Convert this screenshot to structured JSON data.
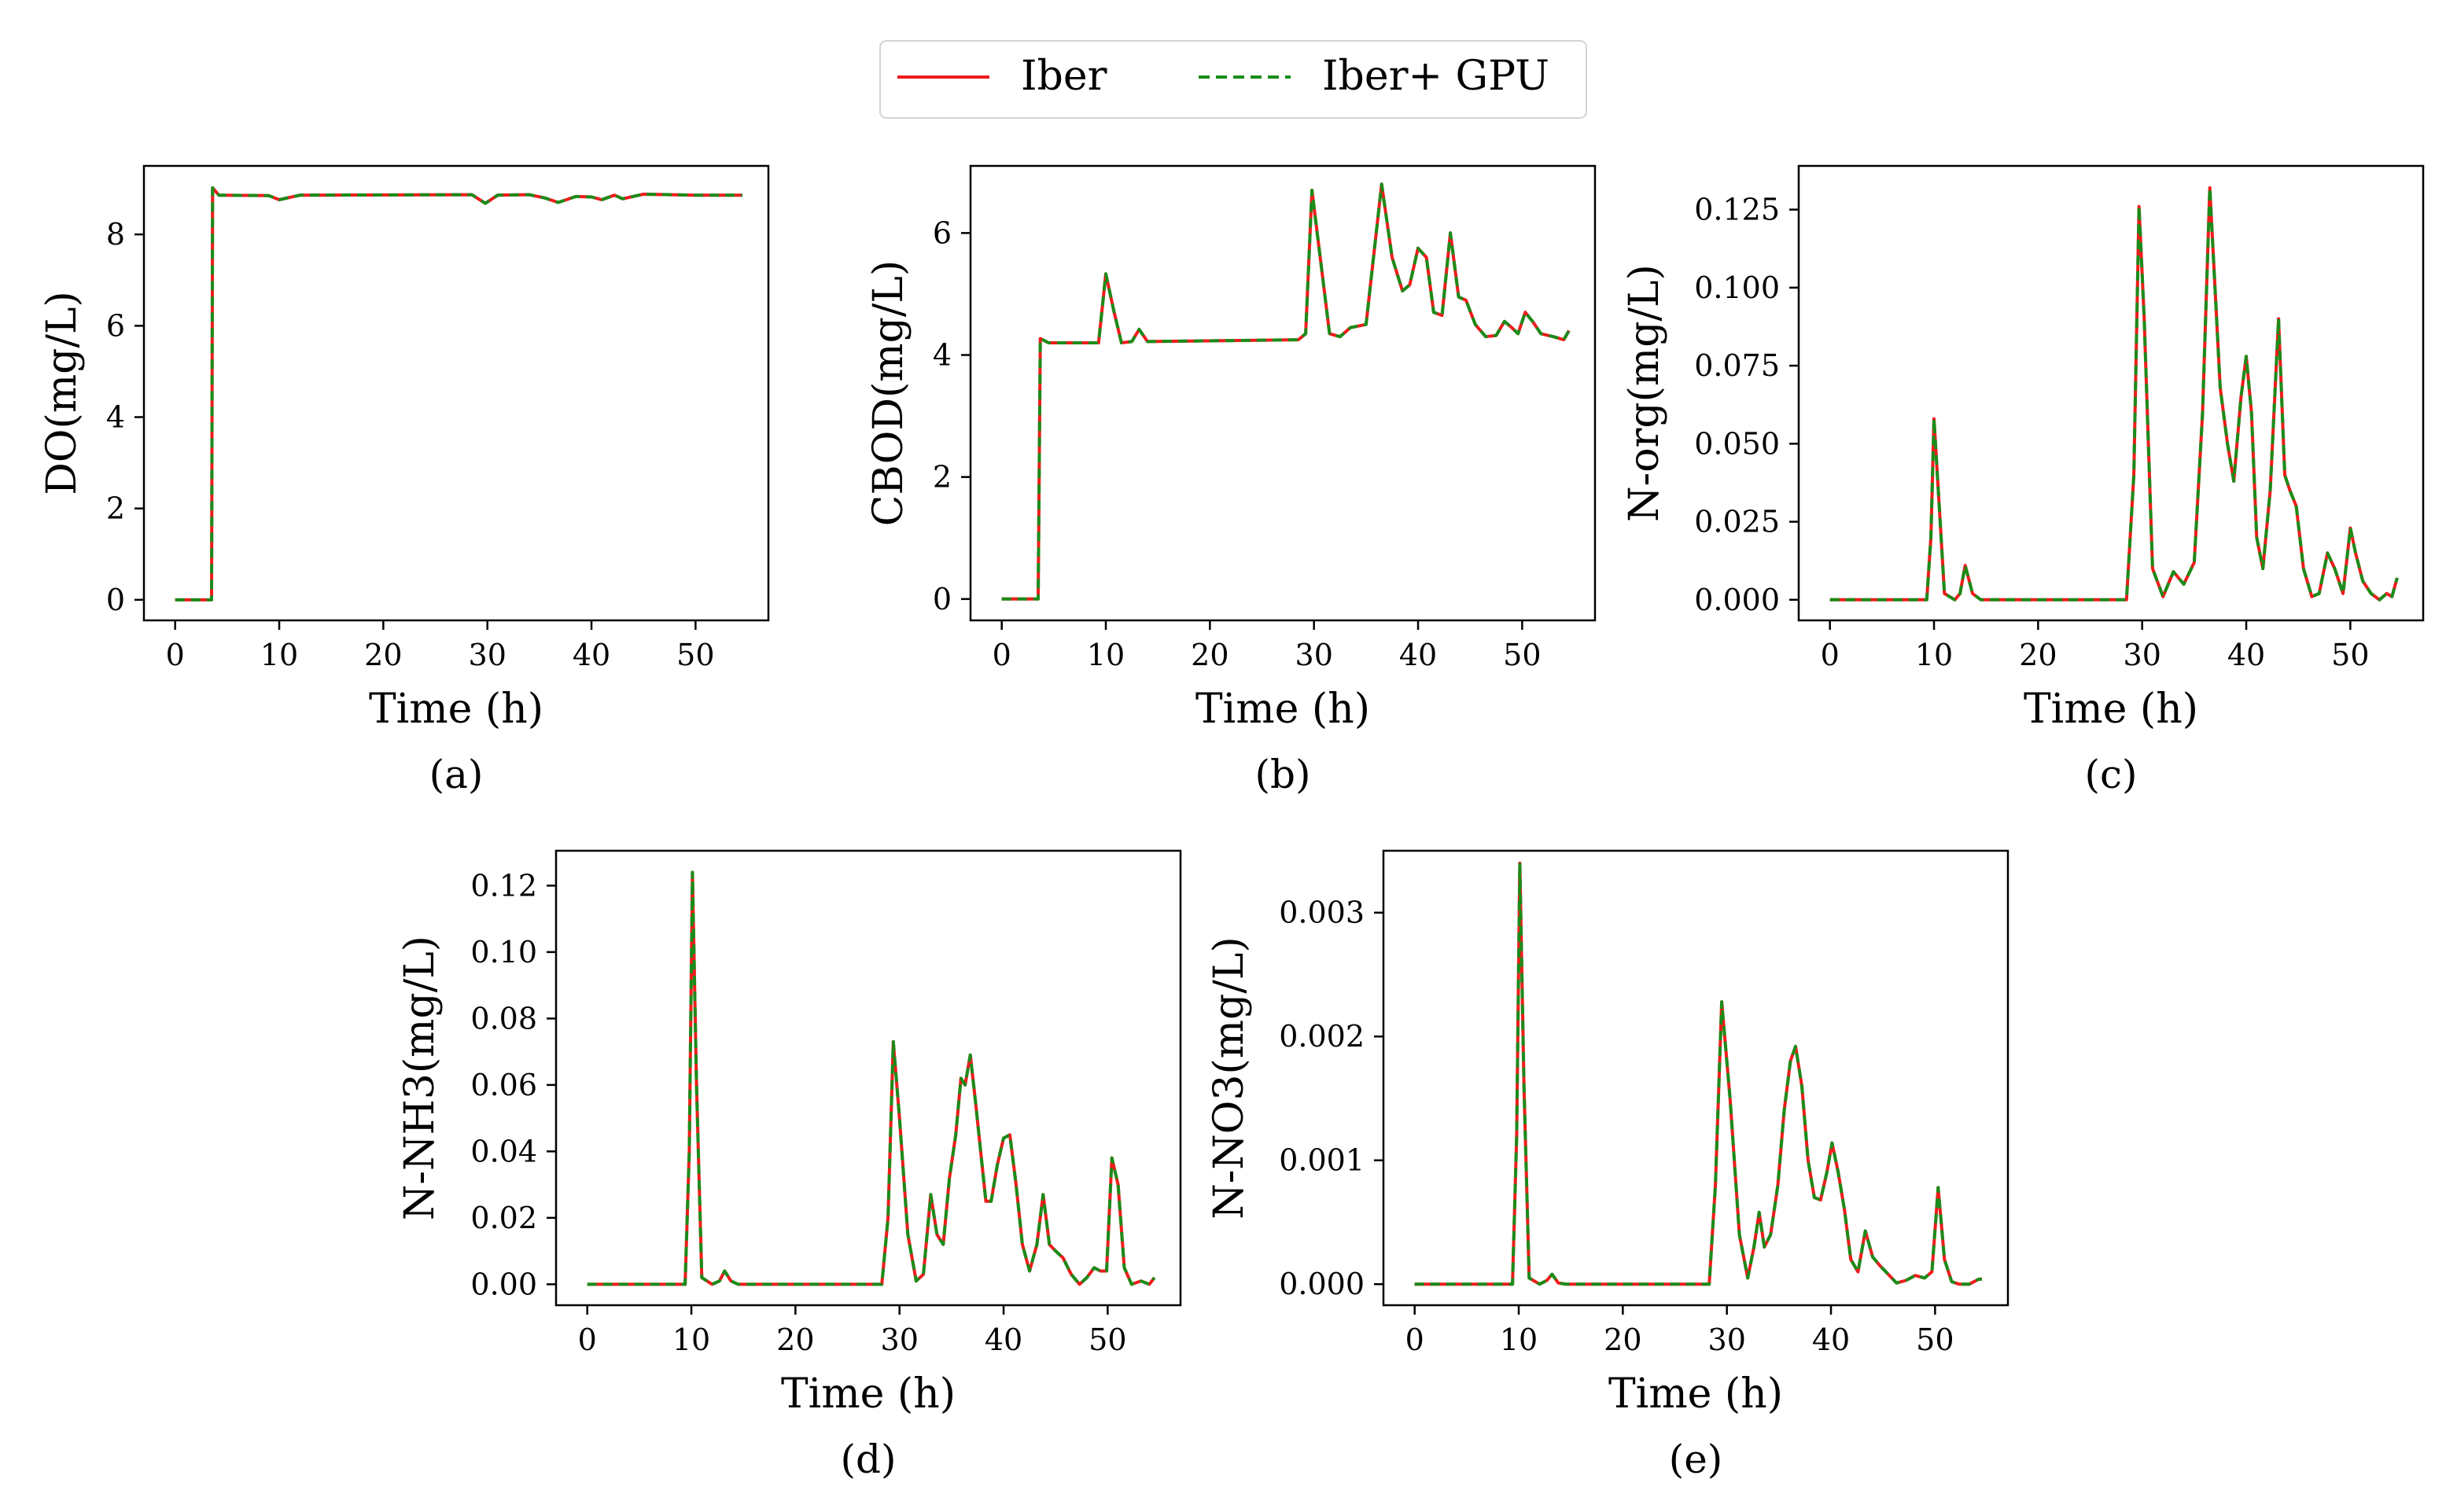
{
  "legend": {
    "entries": [
      {
        "label": "Iber",
        "color": "#ee1c1c",
        "style": "solid"
      },
      {
        "label": "Iber+ GPU",
        "color": "#1a8c1a",
        "style": "dashed"
      }
    ]
  },
  "chart_data": [
    {
      "panel": "(a)",
      "type": "line",
      "xlabel": "Time (h)",
      "ylabel": "DO(mg/L)",
      "xlim": [
        -3,
        57
      ],
      "ylim": [
        -0.45,
        9.5
      ],
      "xticks": [
        0,
        10,
        20,
        30,
        40,
        50
      ],
      "yticks": [
        0,
        2,
        4,
        6,
        8
      ],
      "ytick_labels": [
        "0",
        "2",
        "4",
        "6",
        "8"
      ],
      "series": [
        {
          "name": "Iber",
          "x": [
            0,
            3.5,
            3.6,
            4.2,
            9,
            10,
            12,
            28.5,
            29.8,
            31,
            34,
            35.5,
            36.8,
            38.5,
            40,
            41,
            42.2,
            43,
            45,
            50,
            54.5
          ],
          "y": [
            0,
            0,
            9.02,
            8.86,
            8.85,
            8.76,
            8.86,
            8.87,
            8.68,
            8.86,
            8.87,
            8.8,
            8.7,
            8.83,
            8.82,
            8.76,
            8.86,
            8.78,
            8.88,
            8.86,
            8.86
          ]
        },
        {
          "name": "Iber+ GPU",
          "x": [
            0,
            3.5,
            3.6,
            4.2,
            9,
            10,
            12,
            28.5,
            29.8,
            31,
            34,
            35.5,
            36.8,
            38.5,
            40,
            41,
            42.2,
            43,
            45,
            50,
            54.5
          ],
          "y": [
            0,
            0,
            9.02,
            8.86,
            8.85,
            8.76,
            8.86,
            8.87,
            8.68,
            8.86,
            8.87,
            8.8,
            8.7,
            8.83,
            8.82,
            8.76,
            8.86,
            8.78,
            8.88,
            8.86,
            8.86
          ]
        }
      ]
    },
    {
      "panel": "(b)",
      "type": "line",
      "xlabel": "Time (h)",
      "ylabel": "CBOD(mg/L)",
      "xlim": [
        -3,
        57
      ],
      "ylim": [
        -0.35,
        7.1
      ],
      "xticks": [
        0,
        10,
        20,
        30,
        40,
        50
      ],
      "yticks": [
        0,
        2,
        4,
        6
      ],
      "ytick_labels": [
        "0",
        "2",
        "4",
        "6"
      ],
      "series": [
        {
          "name": "Iber",
          "x": [
            0,
            3.5,
            3.7,
            4.5,
            9.3,
            10,
            10.8,
            11.5,
            12.5,
            13.2,
            14,
            28.5,
            29.2,
            29.8,
            30.6,
            31.5,
            32.5,
            33.5,
            35,
            36.5,
            37.5,
            38.5,
            39.2,
            40,
            40.8,
            41.5,
            42.3,
            43.1,
            43.9,
            44.6,
            45.5,
            46.5,
            47.5,
            48.3,
            49,
            49.6,
            50.3,
            51,
            51.8,
            53,
            54,
            54.5
          ],
          "y": [
            0,
            0,
            4.27,
            4.2,
            4.2,
            5.33,
            4.7,
            4.2,
            4.22,
            4.42,
            4.22,
            4.25,
            4.35,
            6.7,
            5.6,
            4.35,
            4.3,
            4.45,
            4.5,
            6.8,
            5.6,
            5.05,
            5.15,
            5.75,
            5.6,
            4.7,
            4.65,
            6.0,
            4.95,
            4.9,
            4.5,
            4.3,
            4.32,
            4.55,
            4.45,
            4.35,
            4.7,
            4.55,
            4.35,
            4.3,
            4.25,
            4.4
          ]
        },
        {
          "name": "Iber+ GPU",
          "x": [
            0,
            3.5,
            3.7,
            4.5,
            9.3,
            10,
            10.8,
            11.5,
            12.5,
            13.2,
            14,
            28.5,
            29.2,
            29.8,
            30.6,
            31.5,
            32.5,
            33.5,
            35,
            36.5,
            37.5,
            38.5,
            39.2,
            40,
            40.8,
            41.5,
            42.3,
            43.1,
            43.9,
            44.6,
            45.5,
            46.5,
            47.5,
            48.3,
            49,
            49.6,
            50.3,
            51,
            51.8,
            53,
            54,
            54.5
          ],
          "y": [
            0,
            0,
            4.27,
            4.2,
            4.2,
            5.33,
            4.7,
            4.2,
            4.22,
            4.42,
            4.22,
            4.25,
            4.35,
            6.7,
            5.6,
            4.35,
            4.3,
            4.45,
            4.5,
            6.8,
            5.6,
            5.05,
            5.15,
            5.75,
            5.6,
            4.7,
            4.65,
            6.0,
            4.95,
            4.9,
            4.5,
            4.3,
            4.32,
            4.55,
            4.45,
            4.35,
            4.7,
            4.55,
            4.35,
            4.3,
            4.25,
            4.4
          ]
        }
      ]
    },
    {
      "panel": "(c)",
      "type": "line",
      "xlabel": "Time (h)",
      "ylabel": "N-org(mg/L)",
      "xlim": [
        -3,
        57
      ],
      "ylim": [
        -0.0066,
        0.139
      ],
      "xticks": [
        0,
        10,
        20,
        30,
        40,
        50
      ],
      "yticks": [
        0,
        0.025,
        0.05,
        0.075,
        0.1,
        0.125
      ],
      "ytick_labels": [
        "0.000",
        "0.025",
        "0.050",
        "0.075",
        "0.100",
        "0.125"
      ],
      "series": [
        {
          "name": "Iber",
          "x": [
            0,
            9.3,
            9.7,
            10,
            10.5,
            11,
            12,
            12.5,
            13,
            13.7,
            14.5,
            28.5,
            29.2,
            29.7,
            30.2,
            31,
            32,
            33,
            34,
            35,
            35.8,
            36.5,
            37,
            37.5,
            38.2,
            38.8,
            39.5,
            40,
            40.5,
            41,
            41.6,
            42.3,
            43.1,
            43.7,
            44.2,
            44.8,
            45.5,
            46.3,
            47,
            47.8,
            48.5,
            49.3,
            50,
            50.5,
            51.2,
            52,
            52.8,
            53.5,
            54,
            54.5
          ],
          "y": [
            0,
            0,
            0.02,
            0.058,
            0.03,
            0.002,
            0,
            0.002,
            0.011,
            0.002,
            0,
            0,
            0.04,
            0.126,
            0.09,
            0.01,
            0.001,
            0.009,
            0.005,
            0.012,
            0.06,
            0.132,
            0.1,
            0.068,
            0.05,
            0.038,
            0.065,
            0.078,
            0.06,
            0.02,
            0.01,
            0.035,
            0.09,
            0.04,
            0.035,
            0.03,
            0.01,
            0.001,
            0.002,
            0.015,
            0.01,
            0.002,
            0.023,
            0.015,
            0.006,
            0.002,
            0.0,
            0.002,
            0.001,
            0.007
          ]
        },
        {
          "name": "Iber+ GPU",
          "x": [
            0,
            9.3,
            9.7,
            10,
            10.5,
            11,
            12,
            12.5,
            13,
            13.7,
            14.5,
            28.5,
            29.2,
            29.7,
            30.2,
            31,
            32,
            33,
            34,
            35,
            35.8,
            36.5,
            37,
            37.5,
            38.2,
            38.8,
            39.5,
            40,
            40.5,
            41,
            41.6,
            42.3,
            43.1,
            43.7,
            44.2,
            44.8,
            45.5,
            46.3,
            47,
            47.8,
            48.5,
            49.3,
            50,
            50.5,
            51.2,
            52,
            52.8,
            53.5,
            54,
            54.5
          ],
          "y": [
            0,
            0,
            0.02,
            0.058,
            0.03,
            0.002,
            0,
            0.002,
            0.011,
            0.002,
            0,
            0,
            0.04,
            0.126,
            0.09,
            0.01,
            0.001,
            0.009,
            0.005,
            0.012,
            0.06,
            0.132,
            0.1,
            0.068,
            0.05,
            0.038,
            0.065,
            0.078,
            0.06,
            0.02,
            0.01,
            0.035,
            0.09,
            0.04,
            0.035,
            0.03,
            0.01,
            0.001,
            0.002,
            0.015,
            0.01,
            0.002,
            0.023,
            0.015,
            0.006,
            0.002,
            0.0,
            0.002,
            0.001,
            0.007
          ]
        }
      ]
    },
    {
      "panel": "(d)",
      "type": "line",
      "xlabel": "Time (h)",
      "ylabel": "N-NH3(mg/L)",
      "xlim": [
        -3,
        57
      ],
      "ylim": [
        -0.0063,
        0.1305
      ],
      "xticks": [
        0,
        10,
        20,
        30,
        40,
        50
      ],
      "yticks": [
        0,
        0.02,
        0.04,
        0.06,
        0.08,
        0.1,
        0.12
      ],
      "ytick_labels": [
        "0.00",
        "0.02",
        "0.04",
        "0.06",
        "0.08",
        "0.10",
        "0.12"
      ],
      "series": [
        {
          "name": "Iber",
          "x": [
            0,
            9.4,
            9.8,
            10.1,
            10.5,
            11,
            12,
            12.7,
            13.2,
            13.8,
            14.5,
            28.3,
            28.9,
            29.4,
            30,
            30.8,
            31.6,
            32.3,
            33,
            33.6,
            34.2,
            34.8,
            35.4,
            35.9,
            36.3,
            36.8,
            37.3,
            37.8,
            38.3,
            38.8,
            39.4,
            40,
            40.6,
            41.2,
            41.8,
            42.5,
            43.2,
            43.8,
            44.4,
            45,
            45.7,
            46.5,
            47.3,
            48,
            48.7,
            49.3,
            49.9,
            50.4,
            51,
            51.6,
            52.3,
            53.2,
            54,
            54.5
          ],
          "y": [
            0,
            0,
            0.04,
            0.124,
            0.06,
            0.002,
            0,
            0.001,
            0.004,
            0.001,
            0,
            0,
            0.02,
            0.073,
            0.05,
            0.015,
            0.001,
            0.003,
            0.027,
            0.015,
            0.012,
            0.032,
            0.045,
            0.062,
            0.06,
            0.069,
            0.055,
            0.04,
            0.025,
            0.025,
            0.036,
            0.044,
            0.045,
            0.03,
            0.012,
            0.004,
            0.012,
            0.027,
            0.012,
            0.01,
            0.008,
            0.003,
            0.0,
            0.002,
            0.005,
            0.004,
            0.004,
            0.038,
            0.03,
            0.005,
            0.0,
            0.001,
            0.0,
            0.002
          ]
        },
        {
          "name": "Iber+ GPU",
          "x": [
            0,
            9.4,
            9.8,
            10.1,
            10.5,
            11,
            12,
            12.7,
            13.2,
            13.8,
            14.5,
            28.3,
            28.9,
            29.4,
            30,
            30.8,
            31.6,
            32.3,
            33,
            33.6,
            34.2,
            34.8,
            35.4,
            35.9,
            36.3,
            36.8,
            37.3,
            37.8,
            38.3,
            38.8,
            39.4,
            40,
            40.6,
            41.2,
            41.8,
            42.5,
            43.2,
            43.8,
            44.4,
            45,
            45.7,
            46.5,
            47.3,
            48,
            48.7,
            49.3,
            49.9,
            50.4,
            51,
            51.6,
            52.3,
            53.2,
            54,
            54.5
          ],
          "y": [
            0,
            0,
            0.04,
            0.124,
            0.06,
            0.002,
            0,
            0.001,
            0.004,
            0.001,
            0,
            0,
            0.02,
            0.073,
            0.05,
            0.015,
            0.001,
            0.003,
            0.027,
            0.015,
            0.012,
            0.032,
            0.045,
            0.062,
            0.06,
            0.069,
            0.055,
            0.04,
            0.025,
            0.025,
            0.036,
            0.044,
            0.045,
            0.03,
            0.012,
            0.004,
            0.012,
            0.027,
            0.012,
            0.01,
            0.008,
            0.003,
            0.0,
            0.002,
            0.005,
            0.004,
            0.004,
            0.038,
            0.03,
            0.005,
            0.0,
            0.001,
            0.0,
            0.002
          ]
        }
      ]
    },
    {
      "panel": "(e)",
      "type": "line",
      "xlabel": "Time (h)",
      "ylabel": "N-NO3(mg/L)",
      "xlim": [
        -3,
        57
      ],
      "ylim": [
        -0.00017,
        0.0035
      ],
      "xticks": [
        0,
        10,
        20,
        30,
        40,
        50
      ],
      "yticks": [
        0,
        0.001,
        0.002,
        0.003
      ],
      "ytick_labels": [
        "0.000",
        "0.001",
        "0.002",
        "0.003"
      ],
      "series": [
        {
          "name": "Iber",
          "x": [
            0,
            9.4,
            9.8,
            10.1,
            10.5,
            11,
            12,
            12.7,
            13.2,
            13.8,
            14.5,
            28.3,
            28.9,
            29.5,
            30.3,
            31.2,
            32,
            32.6,
            33.1,
            33.6,
            34.2,
            34.9,
            35.5,
            36.1,
            36.6,
            37.2,
            37.8,
            38.4,
            39,
            39.6,
            40.1,
            40.7,
            41.3,
            41.9,
            42.6,
            43.3,
            44,
            44.7,
            45.5,
            46.3,
            47.2,
            48.1,
            49,
            49.7,
            50.3,
            50.9,
            51.6,
            52.3,
            53.3,
            54.2,
            54.5
          ],
          "y": [
            0,
            0,
            0.0012,
            0.0034,
            0.0016,
            5e-05,
            0,
            3e-05,
            8e-05,
            1e-05,
            0,
            0,
            0.0008,
            0.00228,
            0.0015,
            0.0004,
            5e-05,
            0.0003,
            0.00058,
            0.0003,
            0.0004,
            0.0008,
            0.0014,
            0.0018,
            0.00192,
            0.0016,
            0.001,
            0.0007,
            0.00068,
            0.0009,
            0.00114,
            0.0009,
            0.0006,
            0.0002,
            0.0001,
            0.00043,
            0.00022,
            0.00015,
            8e-05,
            1e-05,
            3e-05,
            7e-05,
            5e-05,
            0.0001,
            0.00078,
            0.0002,
            2e-05,
            0.0,
            0.0,
            4e-05,
            4e-05
          ]
        },
        {
          "name": "Iber+ GPU",
          "x": [
            0,
            9.4,
            9.8,
            10.1,
            10.5,
            11,
            12,
            12.7,
            13.2,
            13.8,
            14.5,
            28.3,
            28.9,
            29.5,
            30.3,
            31.2,
            32,
            32.6,
            33.1,
            33.6,
            34.2,
            34.9,
            35.5,
            36.1,
            36.6,
            37.2,
            37.8,
            38.4,
            39,
            39.6,
            40.1,
            40.7,
            41.3,
            41.9,
            42.6,
            43.3,
            44,
            44.7,
            45.5,
            46.3,
            47.2,
            48.1,
            49,
            49.7,
            50.3,
            50.9,
            51.6,
            52.3,
            53.3,
            54.2,
            54.5
          ],
          "y": [
            0,
            0,
            0.0012,
            0.0034,
            0.0016,
            5e-05,
            0,
            3e-05,
            8e-05,
            1e-05,
            0,
            0,
            0.0008,
            0.00228,
            0.0015,
            0.0004,
            5e-05,
            0.0003,
            0.00058,
            0.0003,
            0.0004,
            0.0008,
            0.0014,
            0.0018,
            0.00192,
            0.0016,
            0.001,
            0.0007,
            0.00068,
            0.0009,
            0.00114,
            0.0009,
            0.0006,
            0.0002,
            0.0001,
            0.00043,
            0.00022,
            0.00015,
            8e-05,
            1e-05,
            3e-05,
            7e-05,
            5e-05,
            0.0001,
            0.00078,
            0.0002,
            2e-05,
            0.0,
            0.0,
            4e-05,
            4e-05
          ]
        }
      ]
    }
  ]
}
